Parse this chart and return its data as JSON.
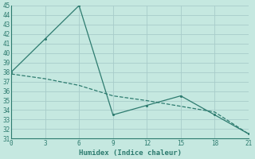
{
  "line1_x": [
    0,
    3,
    6,
    9,
    12,
    15,
    18,
    21
  ],
  "line1_y": [
    38.0,
    41.5,
    45.0,
    33.5,
    34.5,
    35.5,
    33.5,
    31.5
  ],
  "line2_x": [
    0,
    3,
    6,
    9,
    12,
    15,
    18,
    21
  ],
  "line2_y": [
    37.8,
    37.3,
    36.6,
    35.5,
    35.0,
    34.4,
    33.8,
    31.5
  ],
  "line_color": "#2d7b6f",
  "bg_color": "#c5e8e0",
  "grid_color": "#a8ccca",
  "xlabel": "Humidex (Indice chaleur)",
  "xlim": [
    0,
    21
  ],
  "ylim": [
    31,
    45
  ],
  "xticks": [
    0,
    3,
    6,
    9,
    12,
    15,
    18,
    21
  ],
  "yticks": [
    31,
    32,
    33,
    34,
    35,
    36,
    37,
    38,
    39,
    40,
    41,
    42,
    43,
    44,
    45
  ],
  "tick_fontsize": 5.5,
  "xlabel_fontsize": 6.5
}
